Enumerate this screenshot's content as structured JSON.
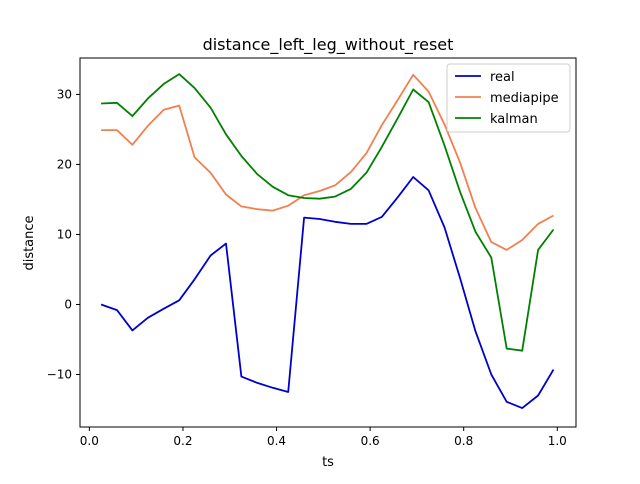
{
  "chart_data": {
    "type": "line",
    "title": "distance_left_leg_without_reset",
    "xlabel": "ts",
    "ylabel": "distance",
    "xlim": [
      -0.02,
      1.04
    ],
    "ylim": [
      -17.5,
      35.2
    ],
    "xticks": [
      0.0,
      0.2,
      0.4,
      0.6,
      0.8,
      1.0
    ],
    "xtick_labels": [
      "0.0",
      "0.2",
      "0.4",
      "0.6",
      "0.8",
      "1.0"
    ],
    "yticks": [
      -10,
      0,
      10,
      20,
      30
    ],
    "ytick_labels": [
      "−10",
      "0",
      "10",
      "20",
      "30"
    ],
    "grid": false,
    "legend_position": "upper right",
    "x": [
      0.025,
      0.059,
      0.092,
      0.125,
      0.159,
      0.192,
      0.225,
      0.259,
      0.292,
      0.325,
      0.359,
      0.392,
      0.425,
      0.459,
      0.492,
      0.525,
      0.559,
      0.592,
      0.625,
      0.659,
      0.692,
      0.725,
      0.759,
      0.792,
      0.825,
      0.859,
      0.892,
      0.925,
      0.959,
      0.992
    ],
    "series": [
      {
        "name": "real",
        "color": "#0000cd",
        "values": [
          0.0,
          -0.8,
          -3.7,
          -1.9,
          -0.6,
          0.6,
          3.6,
          7.0,
          8.7,
          -10.3,
          -11.2,
          -11.9,
          -12.5,
          12.4,
          12.2,
          11.8,
          11.5,
          11.5,
          12.5,
          15.3,
          18.2,
          16.3,
          11.0,
          3.8,
          -3.8,
          -10.0,
          -13.9,
          -14.8,
          -13.0,
          -9.3
        ]
      },
      {
        "name": "mediapipe",
        "color": "#f08050",
        "values": [
          24.9,
          24.9,
          22.8,
          25.5,
          27.8,
          28.4,
          21.0,
          18.8,
          15.7,
          14.0,
          13.6,
          13.4,
          14.1,
          15.6,
          16.2,
          17.0,
          18.9,
          21.6,
          25.6,
          29.2,
          32.8,
          30.4,
          25.7,
          20.3,
          13.8,
          8.9,
          7.8,
          9.2,
          11.5,
          12.7
        ]
      },
      {
        "name": "kalman",
        "color": "#008000",
        "values": [
          28.7,
          28.8,
          26.9,
          29.4,
          31.5,
          32.9,
          30.9,
          28.1,
          24.3,
          21.2,
          18.6,
          16.8,
          15.6,
          15.2,
          15.1,
          15.4,
          16.5,
          18.8,
          22.5,
          26.6,
          30.7,
          28.9,
          22.7,
          16.1,
          10.4,
          6.7,
          -6.3,
          -6.6,
          7.8,
          10.7
        ]
      }
    ]
  }
}
